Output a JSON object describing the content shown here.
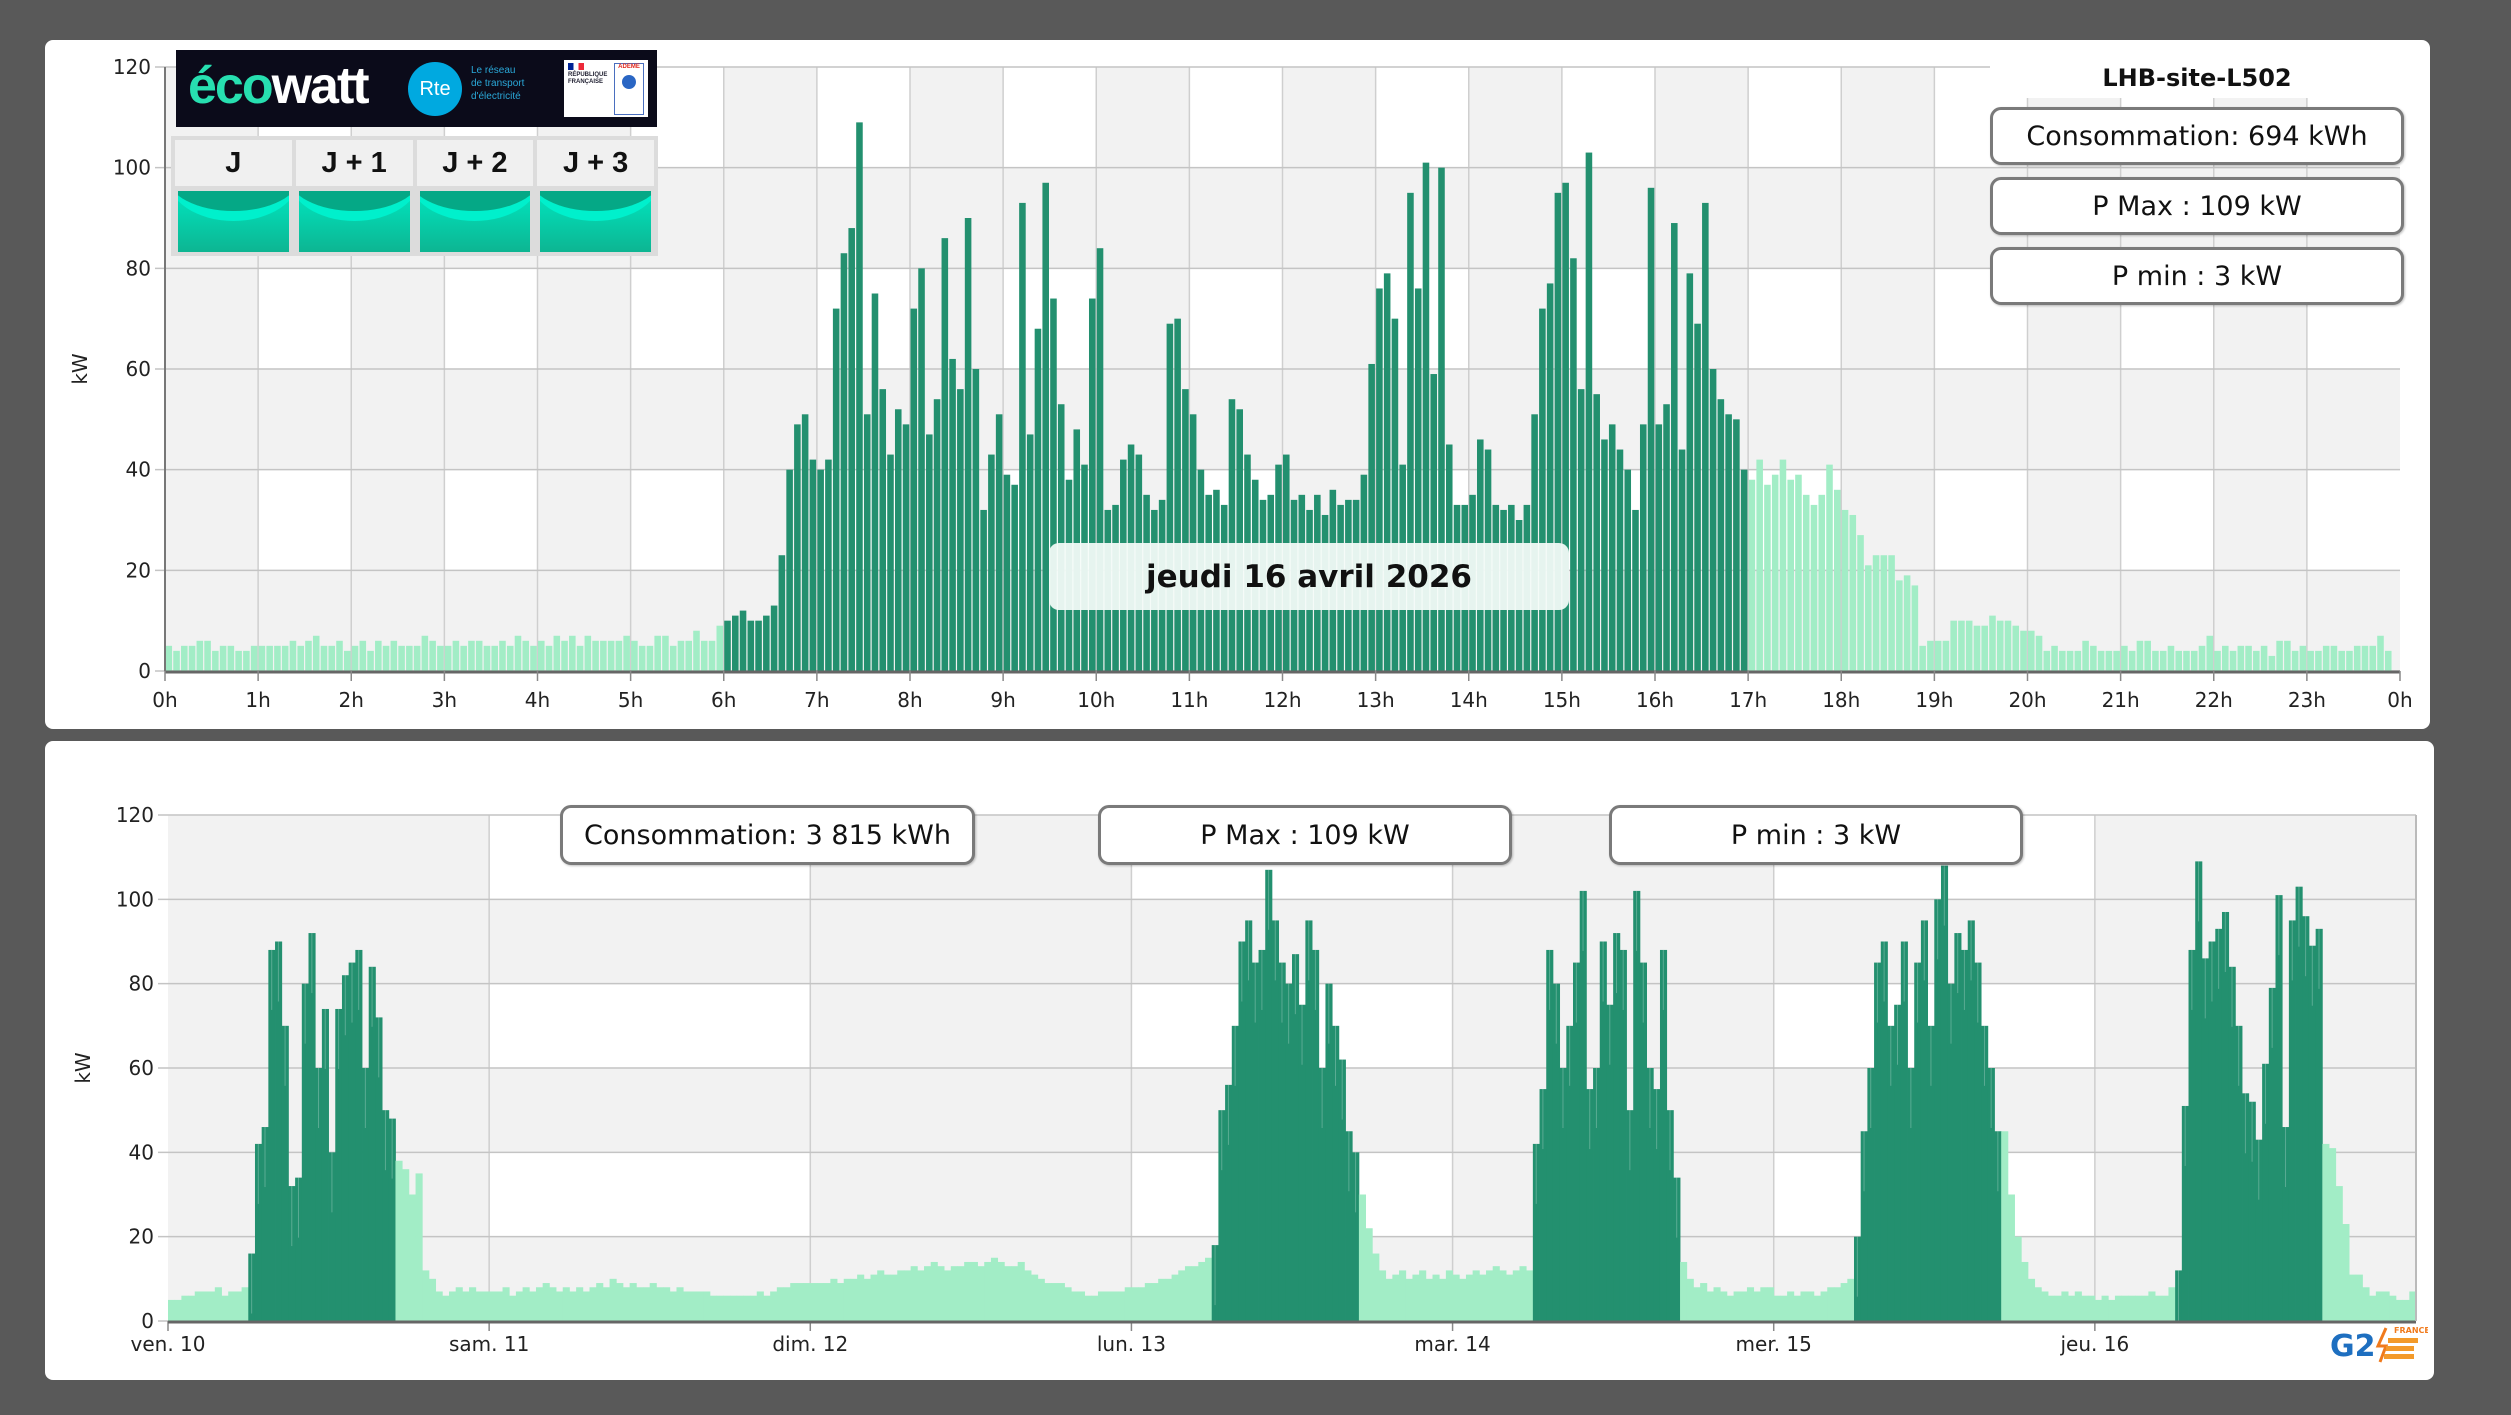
{
  "site": {
    "title": "LHB-site-L502"
  },
  "colors": {
    "peak_bar": "#23906f",
    "offpeak_bar": "#a2edc6",
    "band_gray": "#f2f2f2",
    "background": "#595959"
  },
  "ecowatt": {
    "logo_word_a": "éco",
    "logo_word_b": "watt",
    "rte_logo": "Rte",
    "rte_tagline": [
      "Le réseau",
      "de transport",
      "d'électricité"
    ],
    "gov_logo": "RÉPUBLIQUE FRANÇAISE",
    "ademe_logo": "ADEME",
    "days": [
      {
        "label": "J",
        "signal": "green"
      },
      {
        "label": "J + 1",
        "signal": "green"
      },
      {
        "label": "J + 2",
        "signal": "green"
      },
      {
        "label": "J + 3",
        "signal": "green"
      }
    ]
  },
  "day_summary": {
    "consommation": "Consommation: 694 kWh",
    "pmax": "P Max :  109 kW",
    "pmin": "P min : 3 kW"
  },
  "week_summary": {
    "consommation": "Consommation: 3 815 kWh",
    "pmax": "P Max :  109 kW",
    "pmin": "P min : 3 kW"
  },
  "date_label": "jeudi 16 avril 2026",
  "footer_logo": "G2E FRANCE",
  "chart_data": [
    {
      "type": "bar",
      "ylabel": "kW",
      "ylim": [
        0,
        120
      ],
      "yticks": [
        "0",
        "20",
        "40",
        "60",
        "80",
        "100",
        "120"
      ],
      "xticks": [
        "0h",
        "1h",
        "2h",
        "3h",
        "4h",
        "5h",
        "6h",
        "7h",
        "8h",
        "9h",
        "10h",
        "11h",
        "12h",
        "13h",
        "14h",
        "15h",
        "16h",
        "17h",
        "18h",
        "19h",
        "20h",
        "21h",
        "22h",
        "23h",
        "0h"
      ],
      "interval_minutes": 5,
      "peak_hours": [
        6,
        17
      ],
      "grid": true,
      "values": [
        5,
        4,
        5,
        5,
        6,
        6,
        4,
        5,
        5,
        4,
        4,
        5,
        5,
        5,
        5,
        5,
        6,
        5,
        6,
        7,
        5,
        5,
        6,
        4,
        5,
        6,
        4,
        6,
        5,
        6,
        5,
        5,
        5,
        7,
        6,
        5,
        5,
        6,
        5,
        6,
        6,
        5,
        5,
        6,
        5,
        7,
        6,
        5,
        6,
        5,
        7,
        6,
        7,
        5,
        7,
        6,
        6,
        6,
        6,
        7,
        6,
        5,
        5,
        7,
        7,
        5,
        6,
        6,
        8,
        6,
        6,
        9,
        10,
        11,
        12,
        10,
        10,
        11,
        13,
        23,
        40,
        49,
        51,
        42,
        40,
        42,
        72,
        83,
        88,
        109,
        51,
        75,
        56,
        43,
        52,
        49,
        72,
        80,
        47,
        54,
        86,
        62,
        56,
        90,
        60,
        32,
        43,
        51,
        39,
        37,
        93,
        47,
        68,
        97,
        74,
        53,
        38,
        48,
        41,
        74,
        84,
        32,
        33,
        42,
        45,
        43,
        35,
        32,
        34,
        69,
        70,
        56,
        51,
        40,
        35,
        36,
        33,
        54,
        52,
        43,
        38,
        34,
        35,
        41,
        43,
        34,
        35,
        32,
        35,
        31,
        36,
        33,
        34,
        34,
        39,
        61,
        76,
        79,
        70,
        41,
        95,
        76,
        101,
        59,
        100,
        45,
        33,
        33,
        35,
        46,
        44,
        33,
        32,
        33,
        30,
        33,
        51,
        72,
        77,
        95,
        97,
        82,
        56,
        103,
        55,
        46,
        49,
        44,
        40,
        32,
        49,
        96,
        49,
        53,
        89,
        44,
        79,
        69,
        93,
        60,
        54,
        51,
        50,
        40,
        38,
        42,
        37,
        39,
        42,
        38,
        39,
        35,
        33,
        35,
        41,
        36,
        32,
        31,
        27,
        21,
        23,
        23,
        23,
        18,
        19,
        17,
        5,
        6,
        6,
        6,
        10,
        10,
        10,
        9,
        9,
        11,
        10,
        10,
        9,
        8,
        8,
        7,
        4,
        5,
        4,
        4,
        4,
        6,
        5,
        4,
        4,
        4,
        5,
        4,
        6,
        6,
        4,
        4,
        5,
        4,
        4,
        4,
        5,
        7,
        4,
        5,
        4,
        5,
        5,
        4,
        5,
        3,
        6,
        6,
        4,
        5,
        4,
        4,
        5,
        5,
        4,
        4,
        5,
        5,
        5,
        7,
        4
      ]
    },
    {
      "type": "area",
      "ylabel": "kW",
      "ylim": [
        0,
        120
      ],
      "yticks": [
        "0",
        "20",
        "40",
        "60",
        "80",
        "100",
        "120"
      ],
      "interval_minutes": 30,
      "peak_hours": [
        6,
        17
      ],
      "grid": true,
      "days": [
        {
          "label": "ven. 10",
          "workday": true,
          "values": [
            5,
            5,
            6,
            6,
            7,
            7,
            7,
            8,
            6,
            7,
            7,
            8,
            16,
            42,
            46,
            88,
            90,
            70,
            32,
            34,
            80,
            92,
            60,
            74,
            40,
            74,
            82,
            85,
            88,
            60,
            84,
            72,
            50,
            48,
            38,
            36,
            30,
            35,
            12,
            10,
            7,
            6,
            7,
            8,
            7,
            8,
            7,
            7
          ]
        },
        {
          "label": "sam. 11",
          "workday": false,
          "values": [
            7,
            7,
            8,
            6,
            7,
            8,
            7,
            8,
            9,
            8,
            7,
            8,
            7,
            8,
            7,
            8,
            9,
            8,
            10,
            9,
            8,
            9,
            8,
            8,
            9,
            8,
            8,
            7,
            8,
            7,
            7,
            7,
            7,
            6,
            6,
            6,
            6,
            6,
            6,
            6,
            7,
            6,
            7,
            8,
            8,
            9,
            9,
            9
          ]
        },
        {
          "label": "dim. 12",
          "workday": false,
          "values": [
            9,
            9,
            9,
            10,
            9,
            10,
            10,
            11,
            10,
            11,
            12,
            11,
            11,
            12,
            12,
            13,
            12,
            13,
            14,
            13,
            12,
            13,
            13,
            14,
            14,
            13,
            14,
            15,
            14,
            13,
            13,
            14,
            12,
            11,
            10,
            9,
            9,
            9,
            8,
            7,
            7,
            6,
            6,
            7,
            7,
            7,
            7,
            8
          ]
        },
        {
          "label": "lun. 13",
          "workday": true,
          "values": [
            8,
            8,
            9,
            9,
            10,
            10,
            11,
            12,
            13,
            13,
            14,
            15,
            18,
            50,
            56,
            70,
            90,
            95,
            85,
            88,
            107,
            95,
            85,
            80,
            87,
            75,
            95,
            88,
            60,
            80,
            70,
            62,
            45,
            40,
            30,
            22,
            16,
            12,
            10,
            11,
            12,
            10,
            11,
            12,
            10,
            11,
            10,
            12
          ]
        },
        {
          "label": "mar. 14",
          "workday": true,
          "values": [
            11,
            10,
            11,
            12,
            11,
            12,
            13,
            12,
            11,
            12,
            13,
            12,
            42,
            55,
            88,
            80,
            60,
            70,
            85,
            102,
            55,
            60,
            90,
            75,
            92,
            88,
            50,
            102,
            85,
            60,
            55,
            88,
            50,
            34,
            14,
            10,
            8,
            9,
            7,
            8,
            7,
            6,
            7,
            7,
            8,
            7,
            8,
            8
          ]
        },
        {
          "label": "mer. 15",
          "workday": true,
          "values": [
            6,
            6,
            7,
            6,
            7,
            7,
            6,
            7,
            8,
            8,
            9,
            10,
            20,
            45,
            60,
            85,
            90,
            70,
            75,
            90,
            60,
            85,
            95,
            70,
            100,
            108,
            80,
            92,
            88,
            95,
            85,
            70,
            60,
            45,
            45,
            30,
            20,
            14,
            10,
            8,
            7,
            6,
            6,
            7,
            6,
            7,
            6,
            6
          ]
        },
        {
          "label": "jeu. 16",
          "workday": true,
          "values": [
            5,
            6,
            5,
            6,
            6,
            6,
            6,
            6,
            7,
            6,
            6,
            8,
            12,
            51,
            88,
            109,
            86,
            90,
            93,
            97,
            84,
            70,
            54,
            52,
            43,
            61,
            79,
            101,
            46,
            95,
            103,
            96,
            89,
            93,
            42,
            41,
            32,
            23,
            11,
            11,
            8,
            6,
            7,
            7,
            6,
            5,
            5,
            7
          ]
        }
      ]
    }
  ]
}
